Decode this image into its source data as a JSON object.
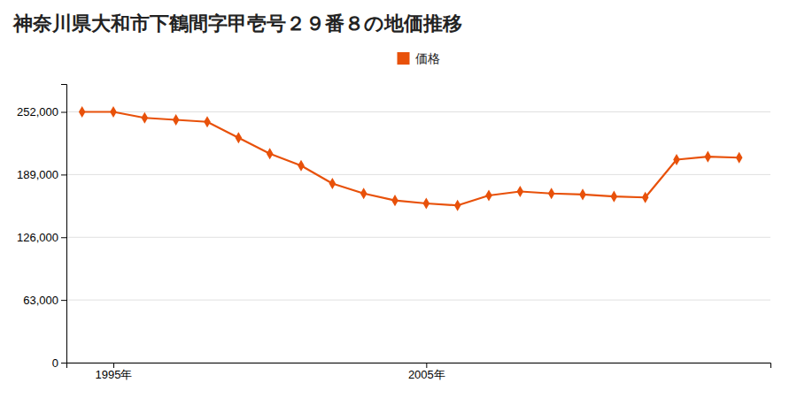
{
  "chart_data": {
    "type": "line",
    "title": "神奈川県大和市下鶴間字甲壱号２９番８の地価推移",
    "x": [
      1994,
      1995,
      1996,
      1997,
      1998,
      1999,
      2000,
      2001,
      2002,
      2003,
      2004,
      2005,
      2006,
      2007,
      2008,
      2009,
      2010,
      2011,
      2012,
      2013,
      2014,
      2015
    ],
    "series": [
      {
        "name": "価格",
        "color": "#E8510A",
        "marker": "diamond",
        "values": [
          252000,
          252000,
          246000,
          244000,
          242000,
          226000,
          210000,
          198000,
          180000,
          170000,
          163000,
          160000,
          158000,
          168000,
          172000,
          170000,
          169000,
          167000,
          166000,
          204000,
          207000,
          206000
        ]
      }
    ],
    "xlim": [
      1993.5,
      2016
    ],
    "xticks": [
      {
        "value": 1995,
        "label": "1995年"
      },
      {
        "value": 2005,
        "label": "2005年"
      }
    ],
    "ylim": [
      0,
      280000
    ],
    "yticks": [
      0,
      {
        "value": 63000,
        "label": "63,000"
      },
      {
        "value": 126000,
        "label": "126,000"
      },
      {
        "value": 189000,
        "label": "189,000"
      },
      {
        "value": 252000,
        "label": "252,000"
      }
    ],
    "grid": true,
    "legend": "top"
  }
}
